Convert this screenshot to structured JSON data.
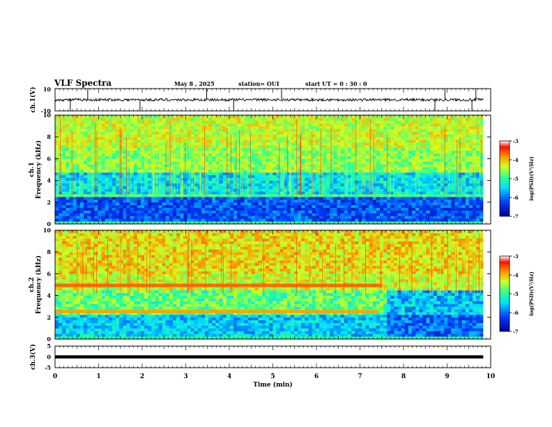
{
  "header": {
    "title": "VLF Spectra",
    "date": "May 8 , 2025",
    "station": "station= OUI",
    "start": "start UT = 0 : 30 : 0"
  },
  "chart_data": [
    {
      "type": "line",
      "panel": "ch1-waveform",
      "ylabel": "ch.1(V)",
      "ylim": [
        -10,
        10
      ],
      "yticks": [
        "10",
        "-10"
      ],
      "baseline": 0,
      "noise_amplitude": 1.2,
      "spikes_min": [
        0.35,
        0.75,
        1.95,
        3.48,
        4.1,
        5.2,
        8.72,
        8.95,
        9.57,
        9.66
      ]
    },
    {
      "type": "heatmap",
      "panel": "ch1-spectrogram",
      "ylabel": "ch.1\nFrequency (kHz)",
      "ylim": [
        0,
        10
      ],
      "yticks": [
        "0",
        "2",
        "4",
        "6",
        "8",
        "10"
      ],
      "xlim": [
        0,
        9.83
      ],
      "colorbar": {
        "label": "log(PSD)(V²/Hz)",
        "range": [
          -7,
          -3
        ],
        "ticks": [
          "-3",
          "-4",
          "-5",
          "-6",
          "-7"
        ]
      },
      "bands": [
        {
          "freq_khz": [
            0.3,
            2.4
          ],
          "log_psd": -6.6
        },
        {
          "freq_khz": [
            2.4,
            2.8
          ],
          "log_psd": -5.2
        },
        {
          "freq_khz": [
            2.8,
            4.8
          ],
          "log_psd": -5.8
        },
        {
          "freq_khz": [
            4.8,
            10
          ],
          "log_psd": -4.8
        }
      ]
    },
    {
      "type": "heatmap",
      "panel": "ch2-spectrogram",
      "ylabel": "ch.2\nFrequency (kHz)",
      "ylim": [
        0,
        10
      ],
      "yticks": [
        "0",
        "2",
        "4",
        "6",
        "8",
        "10"
      ],
      "xlim": [
        0,
        9.83
      ],
      "colorbar": {
        "label": "log(PSD)(V²/Hz)",
        "range": [
          -7,
          -3
        ],
        "ticks": [
          "-3",
          "-4",
          "-5",
          "-6",
          "-7"
        ]
      },
      "lines": [
        {
          "freq_khz": 4.9,
          "t_min": [
            0,
            7.5
          ],
          "log_psd": -3.6
        },
        {
          "freq_khz": 2.5,
          "t_min": [
            0,
            7.4
          ],
          "log_psd": -3.9
        }
      ],
      "transition_min": 7.6
    },
    {
      "type": "line",
      "panel": "ch3-waveform",
      "ylabel": "ch.3(V)",
      "ylim": [
        -5,
        5
      ],
      "yticks": [
        "5",
        "0",
        "-5"
      ],
      "level": 0
    }
  ],
  "xaxis": {
    "label": "Time (min)",
    "ticks": [
      "0",
      "1",
      "2",
      "3",
      "4",
      "5",
      "6",
      "7",
      "8",
      "9",
      "10"
    ],
    "range": [
      0,
      10
    ]
  }
}
